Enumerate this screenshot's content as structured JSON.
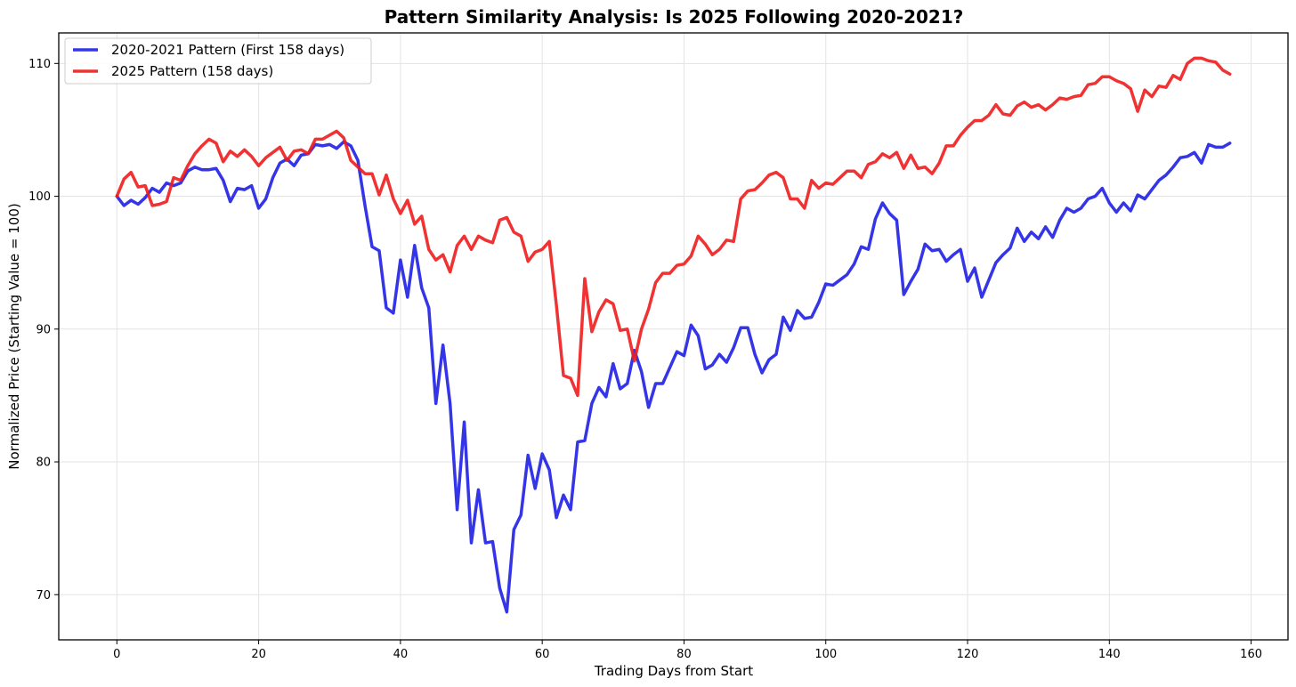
{
  "chart_data": {
    "type": "line",
    "title": "Pattern Similarity Analysis: Is 2025 Following 2020-2021?",
    "xlabel": "Trading Days from Start",
    "ylabel": "Normalized Price (Starting Value = 100)",
    "xlim": [
      -8.2,
      165.2
    ],
    "ylim": [
      66.6,
      112.3
    ],
    "xticks": [
      0,
      20,
      40,
      60,
      80,
      100,
      120,
      140,
      160
    ],
    "yticks": [
      70,
      80,
      90,
      100,
      110
    ],
    "grid": true,
    "legend_position": "top-left",
    "series": [
      {
        "name": "2020-2021 Pattern (First 158 days)",
        "color": "#1f1fe6",
        "values": [
          100.0,
          99.3,
          99.7,
          99.4,
          99.9,
          100.6,
          100.3,
          101.0,
          100.8,
          101.0,
          101.9,
          102.2,
          102.0,
          102.0,
          102.1,
          101.2,
          99.6,
          100.6,
          100.5,
          100.8,
          99.1,
          99.8,
          101.4,
          102.5,
          102.8,
          102.3,
          103.1,
          103.2,
          103.9,
          103.8,
          103.9,
          103.6,
          104.1,
          103.8,
          102.7,
          99.3,
          96.2,
          95.9,
          91.6,
          91.2,
          95.2,
          92.4,
          96.3,
          93.1,
          91.6,
          84.4,
          88.8,
          84.4,
          76.4,
          83.0,
          73.9,
          77.9,
          73.9,
          74.0,
          70.5,
          68.7,
          74.9,
          76.0,
          80.5,
          78.0,
          80.6,
          79.4,
          75.8,
          77.5,
          76.4,
          81.5,
          81.6,
          84.4,
          85.6,
          84.9,
          87.4,
          85.5,
          85.9,
          88.4,
          86.8,
          84.1,
          85.9,
          85.9,
          87.1,
          88.3,
          88.0,
          90.3,
          89.5,
          87.0,
          87.3,
          88.1,
          87.5,
          88.6,
          90.1,
          90.1,
          88.1,
          86.7,
          87.7,
          88.1,
          90.9,
          89.9,
          91.4,
          90.8,
          90.9,
          92.0,
          93.4,
          93.3,
          93.7,
          94.1,
          94.9,
          96.2,
          96.0,
          98.3,
          99.5,
          98.7,
          98.2,
          92.6,
          93.6,
          94.5,
          96.4,
          95.9,
          96.0,
          95.1,
          95.6,
          96.0,
          93.6,
          94.6,
          92.4,
          93.7,
          95.0,
          95.6,
          96.1,
          97.6,
          96.6,
          97.3,
          96.8,
          97.7,
          96.9,
          98.2,
          99.1,
          98.8,
          99.1,
          99.8,
          100.0,
          100.6,
          99.5,
          98.8,
          99.5,
          98.9,
          100.1,
          99.8,
          100.5,
          101.2,
          101.6,
          102.2,
          102.9,
          103.0,
          103.3,
          102.5,
          103.9,
          103.7,
          103.7,
          104.0
        ]
      },
      {
        "name": "2025 Pattern (158 days)",
        "color": "#ee1c1c",
        "values": [
          100.0,
          101.3,
          101.8,
          100.7,
          100.8,
          99.3,
          99.4,
          99.6,
          101.4,
          101.2,
          102.3,
          103.2,
          103.8,
          104.3,
          104.0,
          102.6,
          103.4,
          103.0,
          103.5,
          103.0,
          102.3,
          102.9,
          103.3,
          103.7,
          102.7,
          103.4,
          103.5,
          103.2,
          104.3,
          104.3,
          104.6,
          104.9,
          104.4,
          102.7,
          102.2,
          101.7,
          101.7,
          100.1,
          101.6,
          99.8,
          98.7,
          99.7,
          97.9,
          98.5,
          96.0,
          95.2,
          95.6,
          94.3,
          96.3,
          97.0,
          96.0,
          97.0,
          96.7,
          96.5,
          98.2,
          98.4,
          97.3,
          97.0,
          95.1,
          95.8,
          96.0,
          96.6,
          91.8,
          86.5,
          86.3,
          85.0,
          93.8,
          89.8,
          91.3,
          92.2,
          91.9,
          89.9,
          90.0,
          87.6,
          90.0,
          91.5,
          93.5,
          94.2,
          94.2,
          94.8,
          94.9,
          95.5,
          97.0,
          96.4,
          95.6,
          96.0,
          96.7,
          96.6,
          99.8,
          100.4,
          100.5,
          101.0,
          101.6,
          101.8,
          101.4,
          99.8,
          99.8,
          99.1,
          101.2,
          100.6,
          101.0,
          100.9,
          101.4,
          101.9,
          101.9,
          101.4,
          102.4,
          102.6,
          103.2,
          102.9,
          103.3,
          102.1,
          103.1,
          102.1,
          102.2,
          101.7,
          102.5,
          103.8,
          103.8,
          104.6,
          105.2,
          105.7,
          105.7,
          106.1,
          106.9,
          106.2,
          106.1,
          106.8,
          107.1,
          106.7,
          106.9,
          106.5,
          106.9,
          107.4,
          107.3,
          107.5,
          107.6,
          108.4,
          108.5,
          109.0,
          109.0,
          108.7,
          108.5,
          108.1,
          106.4,
          108.0,
          107.5,
          108.3,
          108.2,
          109.1,
          108.8,
          110.0,
          110.4,
          110.4,
          110.2,
          110.1,
          109.5,
          109.2
        ]
      }
    ]
  }
}
